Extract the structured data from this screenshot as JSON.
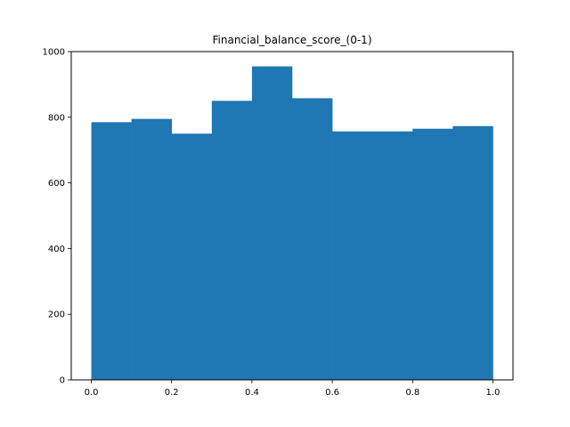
{
  "chart_data": {
    "type": "bar",
    "title": "Financial_balance_score_(0-1)",
    "xlabel": "",
    "ylabel": "",
    "bin_edges": [
      0.0,
      0.1,
      0.2,
      0.3,
      0.4,
      0.5,
      0.6,
      0.7,
      0.8,
      0.9,
      1.0
    ],
    "values": [
      785,
      795,
      750,
      850,
      955,
      858,
      757,
      757,
      765,
      773
    ],
    "xlim": [
      -0.05,
      1.05
    ],
    "ylim": [
      0,
      1000
    ],
    "xticks": [
      0.0,
      0.2,
      0.4,
      0.6,
      0.8,
      1.0
    ],
    "xtick_labels": [
      "0.0",
      "0.2",
      "0.4",
      "0.6",
      "0.8",
      "1.0"
    ],
    "yticks": [
      0,
      200,
      400,
      600,
      800,
      1000
    ],
    "ytick_labels": [
      "0",
      "200",
      "400",
      "600",
      "800",
      "1000"
    ],
    "bar_color": "#1f77b4",
    "grid": false,
    "legend": "none"
  }
}
